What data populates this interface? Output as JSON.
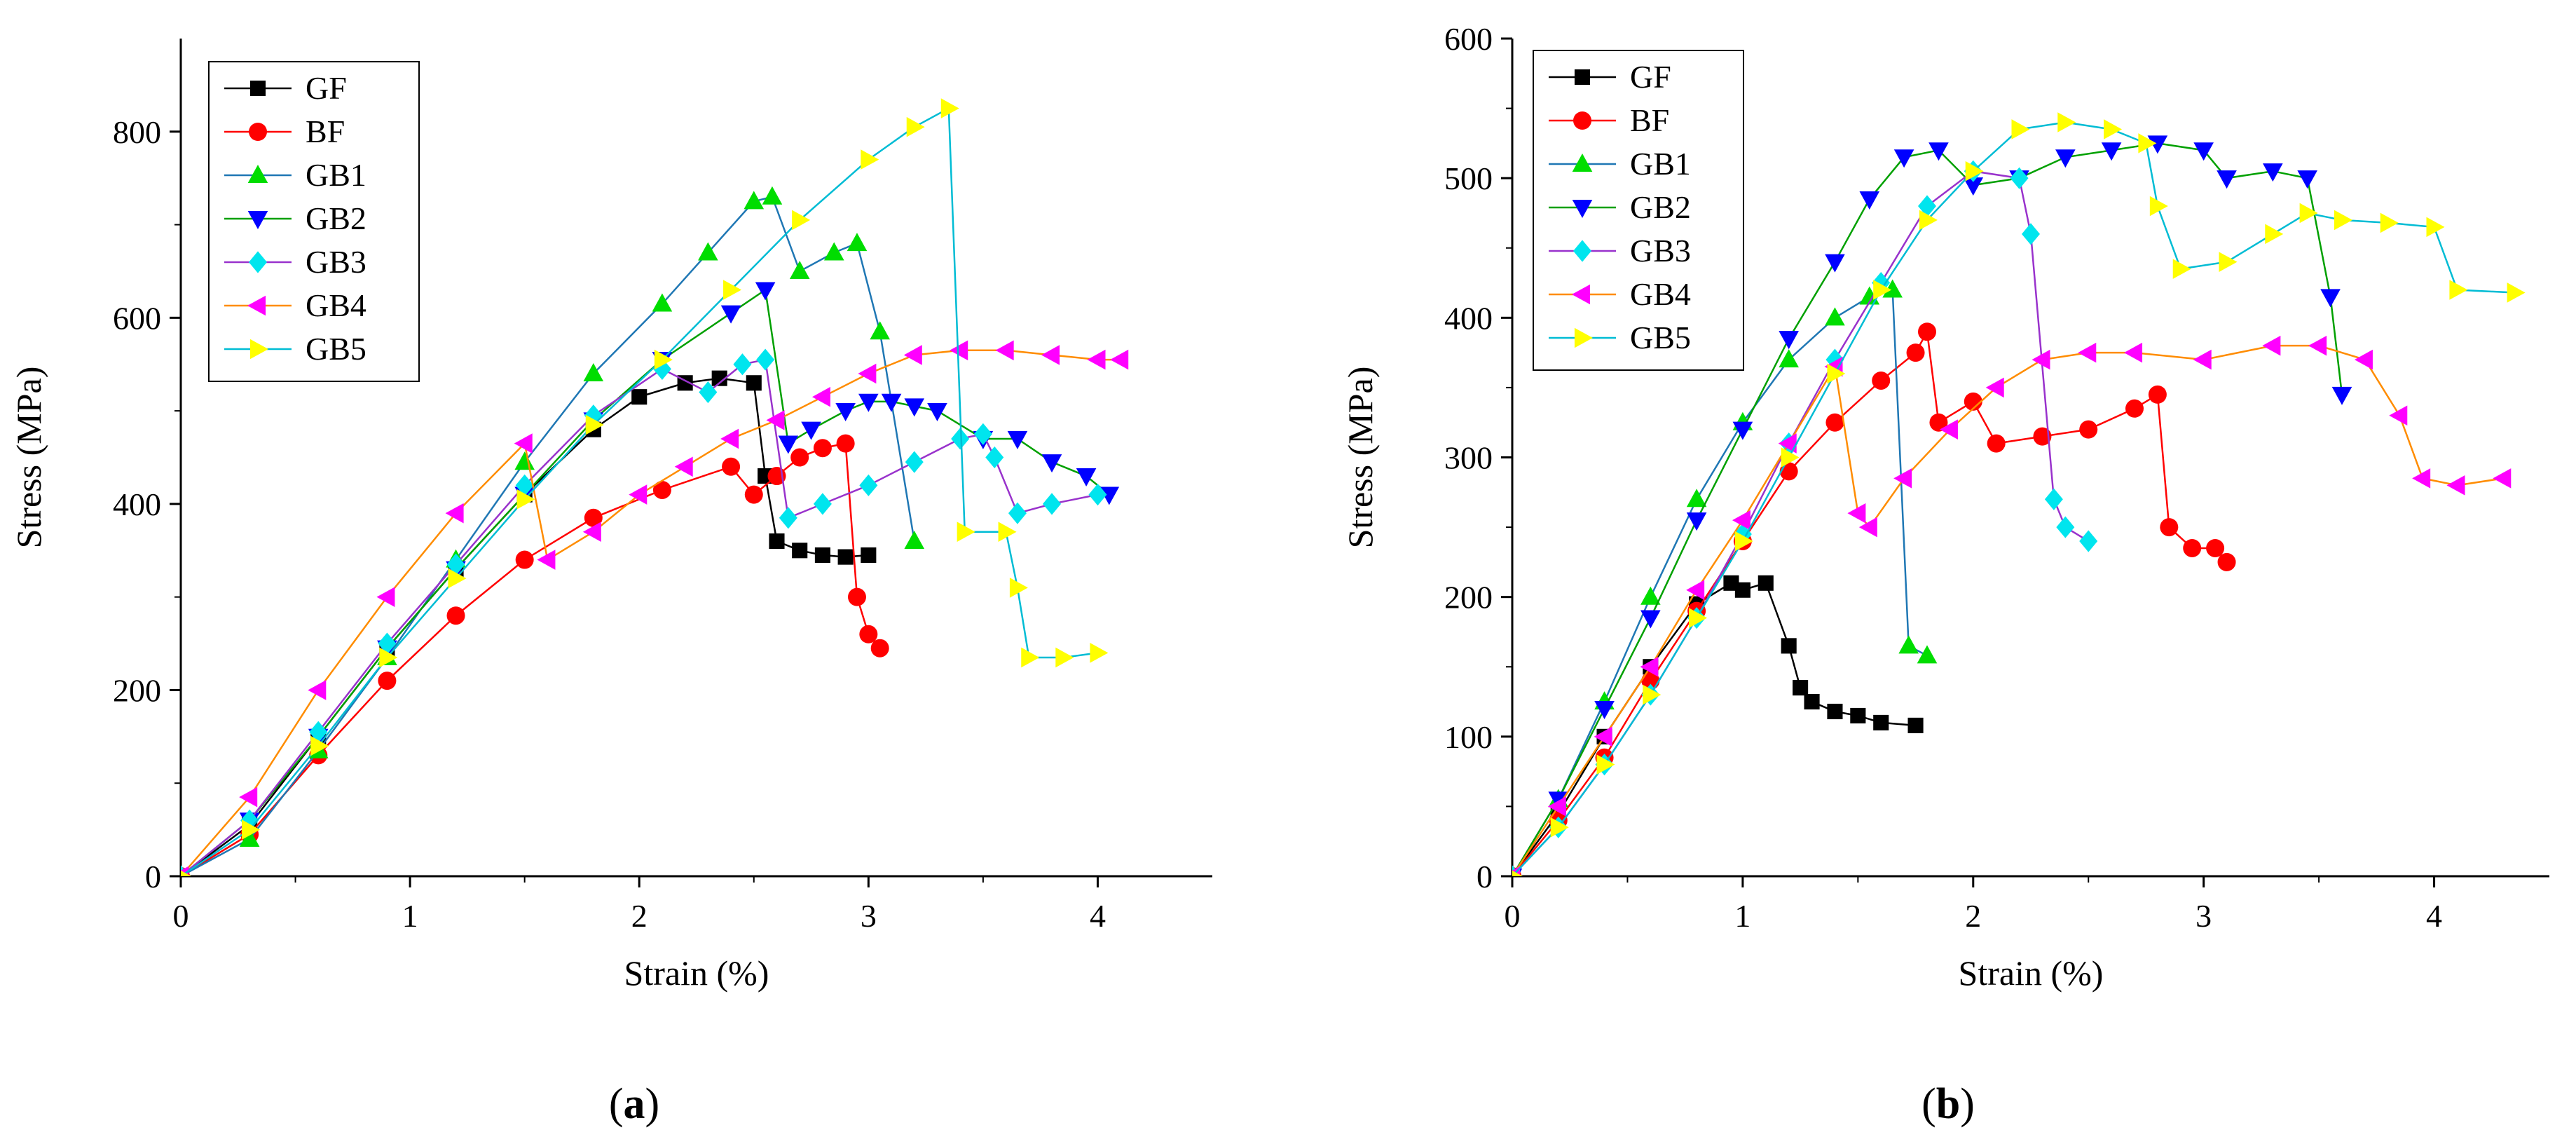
{
  "figure": {
    "panel_labels": [
      "(a)",
      "(b)"
    ]
  },
  "series_colors": {
    "GF": "#000000",
    "BF": "#ff0000",
    "GB1": "#00dd00",
    "GB2": "#0000ff",
    "GB3": "#00e5ee",
    "GB4": "#ff00ff",
    "GB5": "#ffff00"
  },
  "series_markers": {
    "GF": "square",
    "BF": "circle",
    "GB1": "triangle-up",
    "GB2": "triangle-down",
    "GB3": "diamond",
    "GB4": "triangle-left",
    "GB5": "triangle-right"
  },
  "series_line_colors": {
    "GF": "#000000",
    "BF": "#ff0000",
    "GB1": "#1f77b4",
    "GB2": "#00a000",
    "GB3": "#9932cc",
    "GB4": "#ff8c00",
    "GB5": "#00bcd4"
  },
  "chart_data": [
    {
      "type": "line",
      "panel": "(a)",
      "title": "",
      "xlabel": "Strain (%)",
      "ylabel": "Stress (MPa)",
      "xlim": [
        0,
        4.5
      ],
      "ylim": [
        0,
        900
      ],
      "xticks": [
        0,
        1,
        2,
        3,
        4
      ],
      "yticks": [
        0,
        200,
        400,
        600,
        800
      ],
      "legend": [
        "GF",
        "BF",
        "GB1",
        "GB2",
        "GB3",
        "GB4",
        "GB5"
      ],
      "legend_position": "top-left",
      "series": [
        {
          "name": "GF",
          "x": [
            0,
            0.3,
            0.6,
            0.9,
            1.2,
            1.5,
            1.8,
            2.0,
            2.2,
            2.35,
            2.5,
            2.55,
            2.6,
            2.7,
            2.8,
            2.9,
            3.0
          ],
          "y": [
            0,
            55,
            150,
            245,
            330,
            410,
            480,
            515,
            530,
            535,
            530,
            430,
            360,
            350,
            345,
            343,
            345
          ]
        },
        {
          "name": "BF",
          "x": [
            0,
            0.3,
            0.6,
            0.9,
            1.2,
            1.5,
            1.8,
            2.1,
            2.4,
            2.5,
            2.6,
            2.7,
            2.8,
            2.9,
            2.95,
            3.0,
            3.05
          ],
          "y": [
            0,
            45,
            130,
            210,
            280,
            340,
            385,
            415,
            440,
            410,
            430,
            450,
            460,
            465,
            300,
            260,
            245
          ]
        },
        {
          "name": "GB1",
          "x": [
            0,
            0.3,
            0.6,
            0.9,
            1.2,
            1.5,
            1.8,
            2.1,
            2.3,
            2.5,
            2.58,
            2.7,
            2.85,
            2.95,
            3.05,
            3.2
          ],
          "y": [
            0,
            40,
            135,
            235,
            340,
            445,
            540,
            615,
            670,
            725,
            730,
            650,
            670,
            680,
            585,
            360
          ]
        },
        {
          "name": "GB2",
          "x": [
            0,
            0.3,
            0.6,
            0.9,
            1.2,
            1.5,
            1.8,
            2.1,
            2.4,
            2.55,
            2.65,
            2.75,
            2.9,
            3.0,
            3.1,
            3.2,
            3.3,
            3.5,
            3.65,
            3.8,
            3.95,
            4.05
          ],
          "y": [
            0,
            60,
            150,
            245,
            330,
            410,
            490,
            555,
            605,
            630,
            465,
            480,
            500,
            510,
            510,
            505,
            500,
            470,
            470,
            445,
            430,
            410
          ]
        },
        {
          "name": "GB3",
          "x": [
            0,
            0.3,
            0.6,
            0.9,
            1.2,
            1.5,
            1.8,
            2.1,
            2.3,
            2.45,
            2.55,
            2.65,
            2.8,
            3.0,
            3.2,
            3.4,
            3.5,
            3.55,
            3.65,
            3.8,
            4.0
          ],
          "y": [
            0,
            60,
            155,
            250,
            335,
            420,
            495,
            545,
            520,
            550,
            555,
            385,
            400,
            420,
            445,
            470,
            475,
            450,
            390,
            400,
            410
          ]
        },
        {
          "name": "GB4",
          "x": [
            0,
            0.3,
            0.6,
            0.9,
            1.2,
            1.5,
            1.6,
            1.8,
            2.0,
            2.2,
            2.4,
            2.6,
            2.8,
            3.0,
            3.2,
            3.4,
            3.6,
            3.8,
            4.0,
            4.1
          ],
          "y": [
            0,
            85,
            200,
            300,
            390,
            465,
            340,
            370,
            410,
            440,
            470,
            490,
            515,
            540,
            560,
            565,
            565,
            560,
            555,
            555
          ]
        },
        {
          "name": "GB5",
          "x": [
            0,
            0.3,
            0.6,
            0.9,
            1.2,
            1.5,
            1.8,
            2.1,
            2.4,
            2.7,
            3.0,
            3.2,
            3.35,
            3.42,
            3.6,
            3.65,
            3.7,
            3.85,
            4.0
          ],
          "y": [
            0,
            50,
            140,
            235,
            320,
            405,
            485,
            555,
            630,
            705,
            770,
            805,
            825,
            370,
            370,
            310,
            235,
            235,
            240
          ]
        }
      ]
    },
    {
      "type": "line",
      "panel": "(b)",
      "title": "",
      "xlabel": "Strain (%)",
      "ylabel": "Stress (MPa)",
      "xlim": [
        0,
        4.5
      ],
      "ylim": [
        0,
        600
      ],
      "xticks": [
        0,
        1,
        2,
        3,
        4
      ],
      "yticks": [
        0,
        100,
        200,
        300,
        400,
        500,
        600
      ],
      "legend": [
        "GF",
        "BF",
        "GB1",
        "GB2",
        "GB3",
        "GB4",
        "GB5"
      ],
      "legend_position": "top-left",
      "series": [
        {
          "name": "GF",
          "x": [
            0,
            0.2,
            0.4,
            0.6,
            0.8,
            0.95,
            1.0,
            1.1,
            1.2,
            1.25,
            1.3,
            1.4,
            1.5,
            1.6,
            1.75
          ],
          "y": [
            0,
            45,
            100,
            150,
            195,
            210,
            205,
            210,
            165,
            135,
            125,
            118,
            115,
            110,
            108
          ]
        },
        {
          "name": "BF",
          "x": [
            0,
            0.2,
            0.4,
            0.6,
            0.8,
            1.0,
            1.2,
            1.4,
            1.6,
            1.75,
            1.8,
            1.85,
            2.0,
            2.1,
            2.3,
            2.5,
            2.7,
            2.8,
            2.85,
            2.95,
            3.05,
            3.1
          ],
          "y": [
            0,
            40,
            85,
            140,
            190,
            240,
            290,
            325,
            355,
            375,
            390,
            325,
            340,
            310,
            315,
            320,
            335,
            345,
            250,
            235,
            235,
            225
          ]
        },
        {
          "name": "GB1",
          "x": [
            0,
            0.2,
            0.4,
            0.6,
            0.8,
            1.0,
            1.2,
            1.4,
            1.55,
            1.65,
            1.72,
            1.8
          ],
          "y": [
            0,
            55,
            125,
            200,
            270,
            325,
            370,
            400,
            415,
            420,
            165,
            158
          ]
        },
        {
          "name": "GB2",
          "x": [
            0,
            0.2,
            0.4,
            0.6,
            0.8,
            1.0,
            1.2,
            1.4,
            1.55,
            1.7,
            1.85,
            2.0,
            2.2,
            2.4,
            2.6,
            2.8,
            3.0,
            3.1,
            3.3,
            3.45,
            3.55,
            3.6
          ],
          "y": [
            0,
            55,
            120,
            185,
            255,
            320,
            385,
            440,
            485,
            515,
            520,
            495,
            500,
            515,
            520,
            525,
            520,
            500,
            505,
            500,
            415,
            345
          ]
        },
        {
          "name": "GB3",
          "x": [
            0,
            0.2,
            0.4,
            0.6,
            0.8,
            1.0,
            1.2,
            1.4,
            1.6,
            1.8,
            2.0,
            2.2,
            2.25,
            2.35,
            2.4,
            2.5
          ],
          "y": [
            0,
            35,
            80,
            130,
            185,
            245,
            310,
            370,
            425,
            480,
            505,
            500,
            460,
            270,
            250,
            240
          ]
        },
        {
          "name": "GB4",
          "x": [
            0,
            0.2,
            0.4,
            0.6,
            0.8,
            1.0,
            1.2,
            1.4,
            1.5,
            1.55,
            1.7,
            1.9,
            2.1,
            2.3,
            2.5,
            2.7,
            3.0,
            3.3,
            3.5,
            3.7,
            3.85,
            3.95,
            4.1,
            4.3
          ],
          "y": [
            0,
            50,
            100,
            150,
            205,
            255,
            310,
            365,
            260,
            250,
            285,
            320,
            350,
            370,
            375,
            375,
            370,
            380,
            380,
            370,
            330,
            285,
            280,
            285
          ]
        },
        {
          "name": "GB5",
          "x": [
            0,
            0.2,
            0.4,
            0.6,
            0.8,
            1.0,
            1.2,
            1.4,
            1.6,
            1.8,
            2.0,
            2.2,
            2.4,
            2.6,
            2.75,
            2.8,
            2.9,
            3.1,
            3.3,
            3.45,
            3.6,
            3.8,
            4.0,
            4.1,
            4.35
          ],
          "y": [
            0,
            35,
            80,
            130,
            185,
            240,
            300,
            360,
            420,
            470,
            505,
            535,
            540,
            535,
            525,
            480,
            435,
            440,
            460,
            475,
            470,
            468,
            465,
            420,
            418
          ]
        }
      ]
    }
  ]
}
